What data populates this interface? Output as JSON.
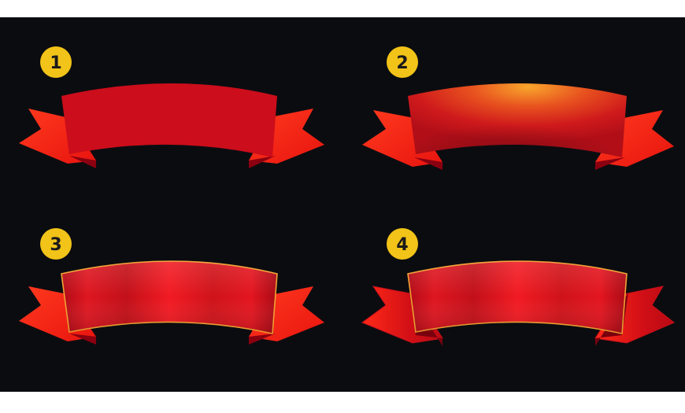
{
  "colors": {
    "page_background": "#ffffff",
    "canvas_background": "#0b0c10",
    "badge_fill": "#f2c318",
    "badge_text": "#1a1a1a",
    "ribbon_flat": "#cc0d1b",
    "tail_color": "#ff2a1a",
    "tail_fold_shadow": "#8a0010",
    "highlight_orange": "#f5a02a",
    "gold_edge": "#f2a030"
  },
  "ribbons": [
    {
      "number": "1",
      "style": "flat"
    },
    {
      "number": "2",
      "style": "gradient-highlight"
    },
    {
      "number": "3",
      "style": "shaded-edge"
    },
    {
      "number": "4",
      "style": "shaded-edge-tails"
    }
  ]
}
